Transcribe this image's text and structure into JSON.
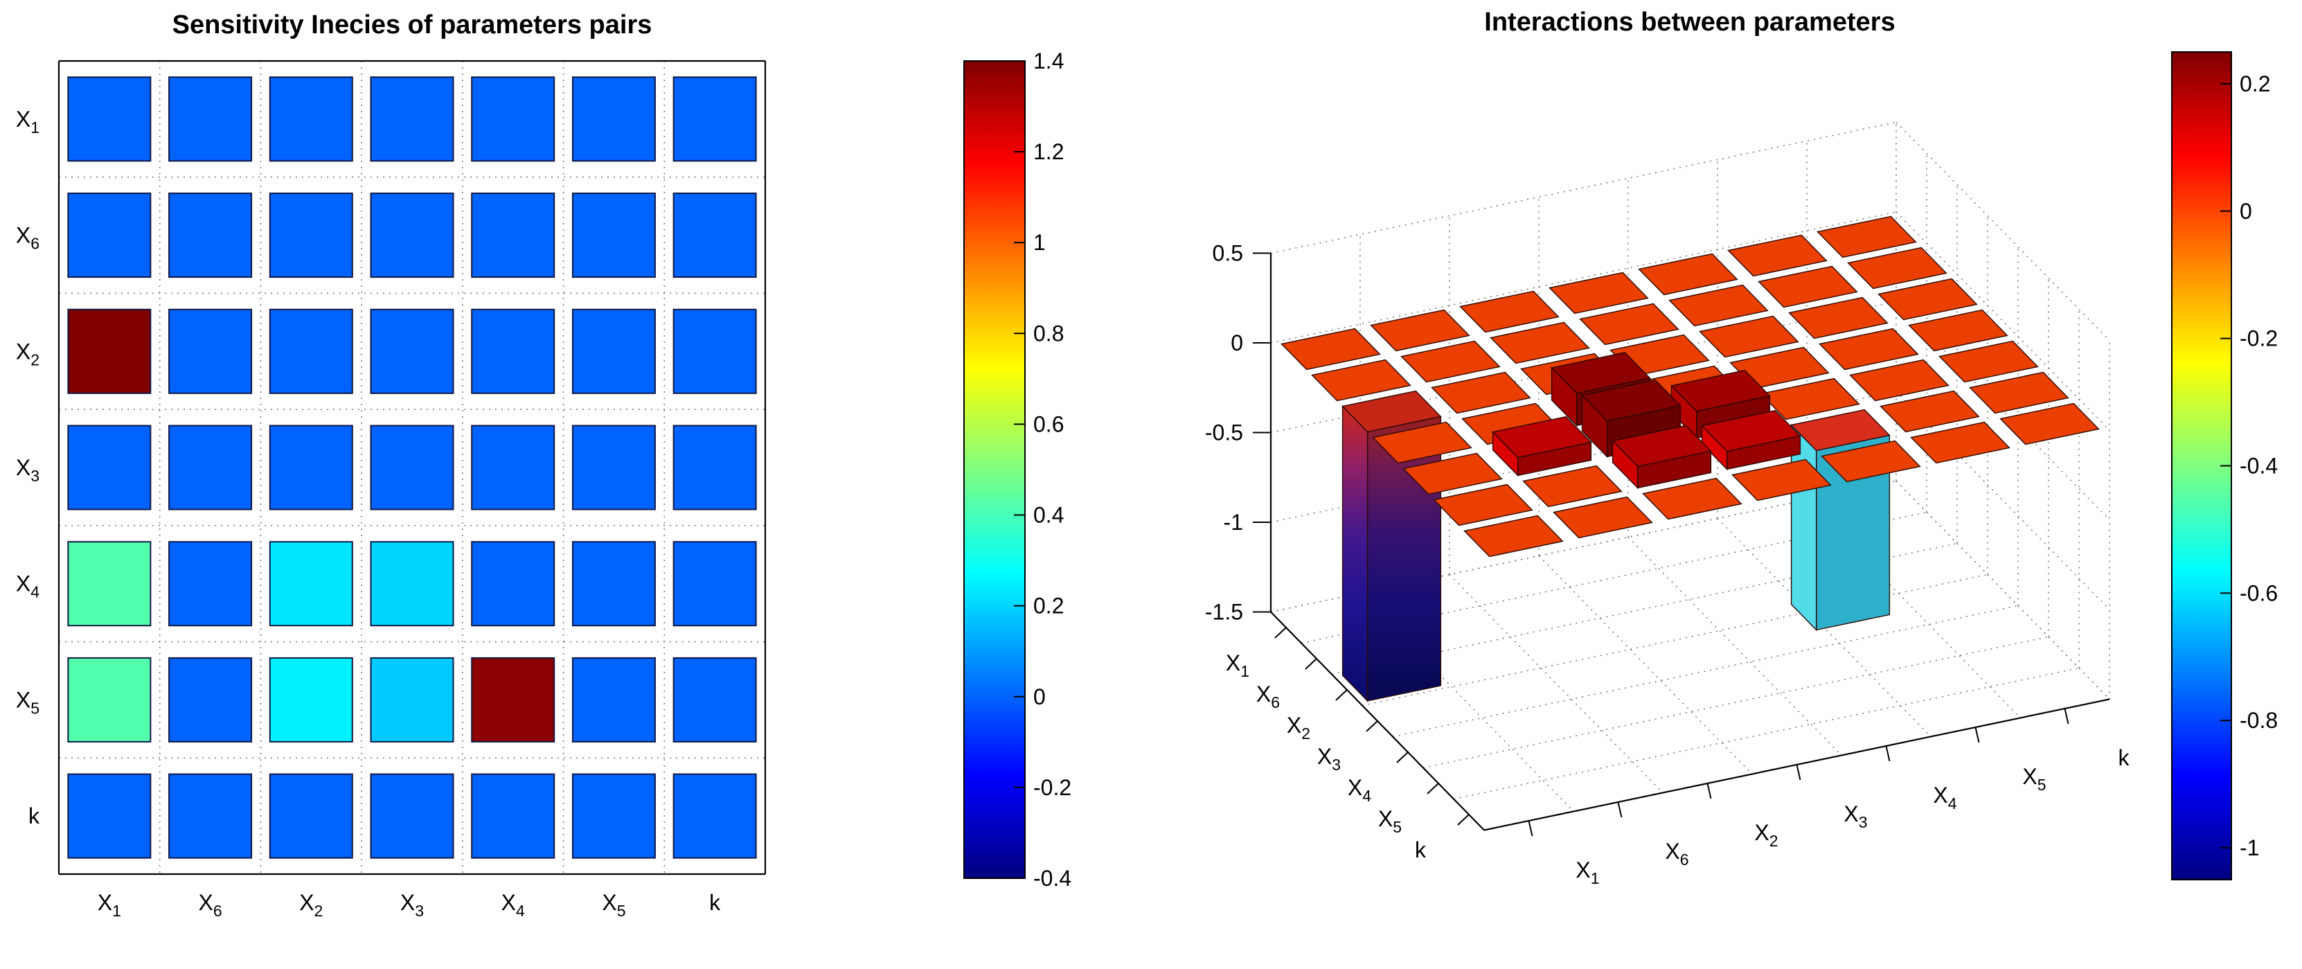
{
  "figure": {
    "background": "#ffffff",
    "colormap": "jet"
  },
  "palette": {
    "jet_low": "#000080",
    "jet_high": "#800000",
    "tile_red": "#e63f00",
    "deep_bar_blue": "#0c0c6e",
    "neg_bar_cyan": "#52dcea"
  },
  "chart_data": [
    {
      "type": "heatmap",
      "title": "Sensitivity Inecies of parameters pairs",
      "row_labels": [
        "X_1",
        "X_6",
        "X_2",
        "X_3",
        "X_4",
        "X_5",
        "k"
      ],
      "col_labels": [
        "X_1",
        "X_6",
        "X_2",
        "X_3",
        "X_4",
        "X_5",
        "k"
      ],
      "values": [
        [
          0,
          0,
          0,
          0,
          0,
          0,
          0
        ],
        [
          0,
          0,
          0,
          0,
          0,
          0,
          0
        ],
        [
          1.4,
          0,
          0,
          0,
          0,
          0,
          0
        ],
        [
          0,
          0,
          0,
          0,
          0,
          0,
          0
        ],
        [
          0.42,
          0,
          0.23,
          0.2,
          0,
          0,
          0
        ],
        [
          0.42,
          0,
          0.25,
          0.18,
          1.38,
          0,
          0
        ],
        [
          0,
          0,
          0,
          0,
          0,
          0,
          0
        ]
      ],
      "grid": "dotted",
      "colormap": "jet",
      "colorbar": {
        "min": -0.4,
        "max": 1.4,
        "ticks": [
          1.4,
          1.2,
          1,
          0.8,
          0.6,
          0.4,
          0.2,
          0,
          -0.2,
          -0.4
        ]
      }
    },
    {
      "type": "bar3",
      "title": "Interactions between parameters",
      "x_labels": [
        "X_1",
        "X_6",
        "X_2",
        "X_3",
        "X_4",
        "X_5",
        "k"
      ],
      "y_labels": [
        "X_1",
        "X_6",
        "X_2",
        "X_3",
        "X_4",
        "X_5",
        "k"
      ],
      "values": [
        [
          0,
          0,
          0,
          0,
          0,
          0,
          0
        ],
        [
          0,
          0,
          0,
          0,
          0,
          0,
          0
        ],
        [
          -1.5,
          0,
          0,
          0,
          0,
          0,
          0
        ],
        [
          0,
          0,
          0.18,
          0,
          0,
          0,
          0
        ],
        [
          0,
          0.1,
          0.2,
          0.15,
          0,
          0,
          0
        ],
        [
          0,
          0,
          0.12,
          0.1,
          -1.0,
          0,
          0
        ],
        [
          0,
          0,
          0,
          0,
          0,
          0,
          0
        ]
      ],
      "zlim": [
        -1.5,
        0.5
      ],
      "z_ticks": [
        0.5,
        0,
        -0.5,
        -1,
        -1.5
      ],
      "grid": "dotted",
      "colormap": "jet",
      "colorbar": {
        "min": -1.05,
        "max": 0.25,
        "ticks": [
          0.2,
          0,
          -0.2,
          -0.4,
          -0.6,
          -0.8,
          -1
        ]
      }
    }
  ]
}
